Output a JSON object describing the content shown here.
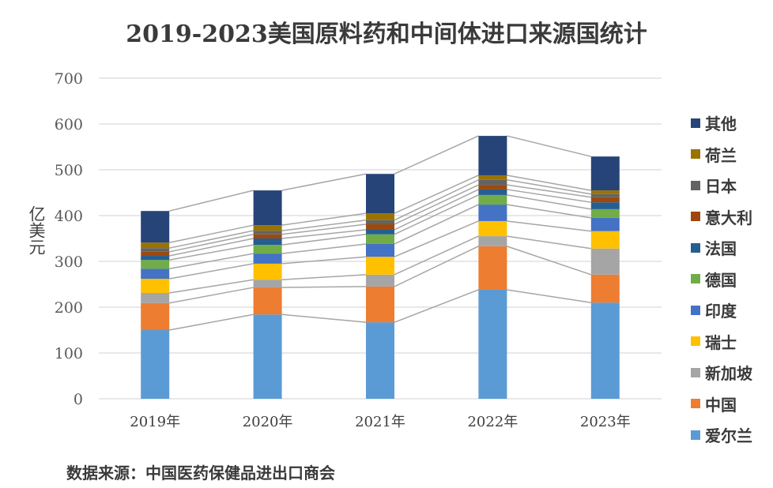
{
  "chart_data": {
    "type": "bar",
    "stacked": true,
    "title": "2019-2023美国原料药和中间体进口来源国统计",
    "xlabel": "",
    "ylabel": "亿美元",
    "ylim": [
      0,
      700
    ],
    "yticks": [
      0,
      100,
      200,
      300,
      400,
      500,
      600,
      700
    ],
    "grid": true,
    "legend_position": "right",
    "series_lines": true,
    "categories": [
      "2019年",
      "2020年",
      "2021年",
      "2022年",
      "2023年"
    ],
    "series": [
      {
        "name": "爱尔兰",
        "color": "#5B9BD5",
        "values": [
          150,
          184,
          167,
          238,
          210
        ]
      },
      {
        "name": "中国",
        "color": "#ED7D31",
        "values": [
          59,
          59,
          78,
          95,
          61
        ]
      },
      {
        "name": "新加坡",
        "color": "#A5A5A5",
        "values": [
          22,
          17,
          26,
          22,
          57
        ]
      },
      {
        "name": "瑞士",
        "color": "#FFC000",
        "values": [
          31,
          35,
          39,
          33,
          38
        ]
      },
      {
        "name": "印度",
        "color": "#4472C4",
        "values": [
          22,
          22,
          28,
          36,
          29
        ]
      },
      {
        "name": "德国",
        "color": "#70AD47",
        "values": [
          19,
          19,
          21,
          21,
          19
        ]
      },
      {
        "name": "法国",
        "color": "#255E91",
        "values": [
          9,
          14,
          10,
          12,
          15
        ]
      },
      {
        "name": "意大利",
        "color": "#9E480E",
        "values": [
          9,
          9,
          12,
          10,
          11
        ]
      },
      {
        "name": "日本",
        "color": "#636363",
        "values": [
          8,
          8,
          9,
          11,
          7
        ]
      },
      {
        "name": "荷兰",
        "color": "#997300",
        "values": [
          12,
          12,
          15,
          10,
          8
        ]
      },
      {
        "name": "其他",
        "color": "#264478",
        "values": [
          69,
          76,
          86,
          86,
          74
        ]
      }
    ]
  },
  "source": "数据来源：中国医药保健品进出口商会"
}
